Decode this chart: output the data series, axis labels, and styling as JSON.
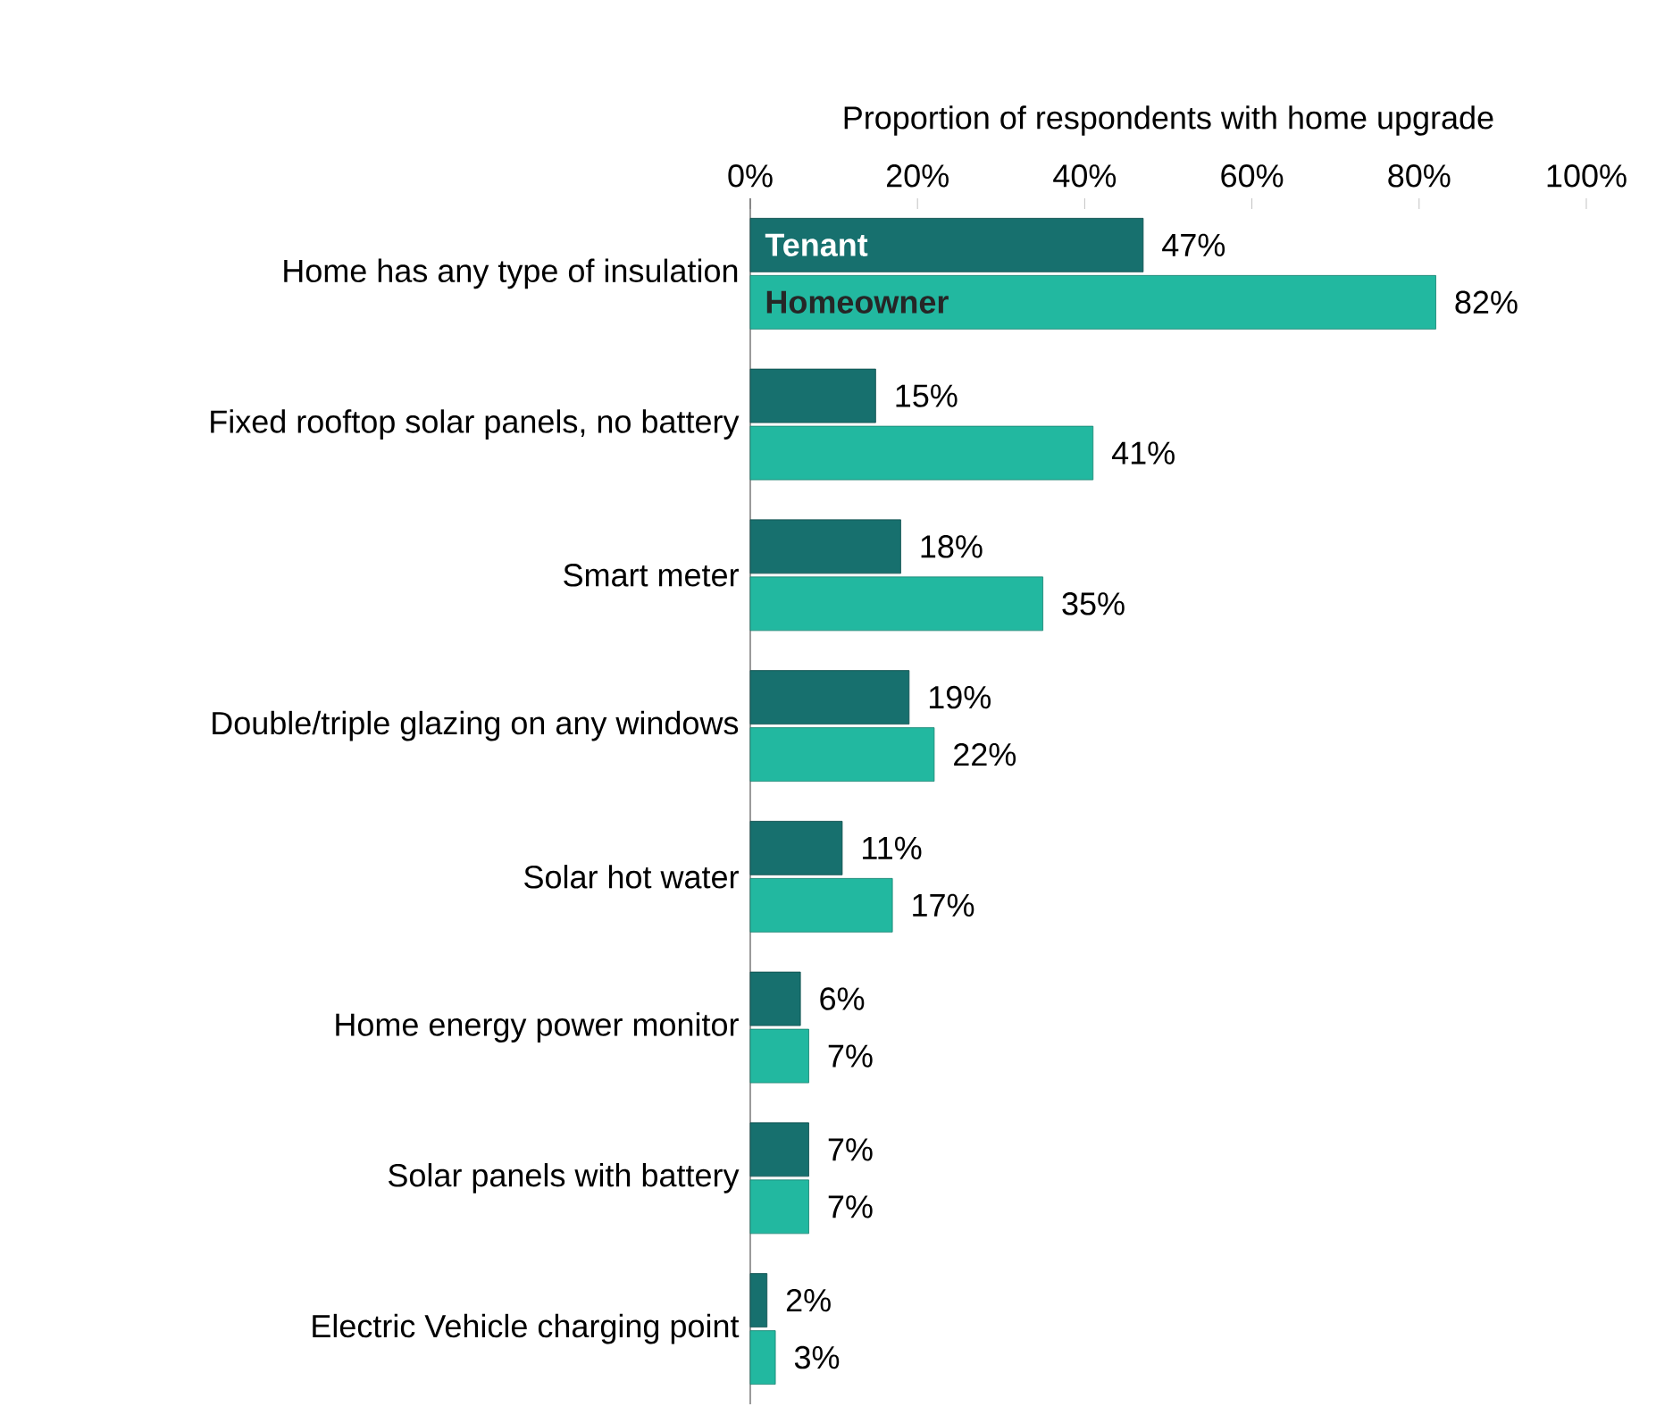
{
  "chart_data": {
    "type": "bar",
    "orientation": "horizontal",
    "xlabel": "Proportion of respondents with home upgrade",
    "categories": [
      "Home has any type of insulation",
      "Fixed rooftop solar panels, no battery",
      "Smart meter",
      "Double/triple glazing on any windows",
      "Solar hot water",
      "Home energy power monitor",
      "Solar panels with battery",
      "Electric Vehicle charging point"
    ],
    "series": [
      {
        "name": "Tenant",
        "color": "#17706e",
        "values": [
          47,
          15,
          18,
          19,
          11,
          6,
          7,
          2
        ],
        "value_labels": [
          "47%",
          "15%",
          "18%",
          "19%",
          "11%",
          "6%",
          "7%",
          "2%"
        ]
      },
      {
        "name": "Homeowner",
        "color": "#22b8a0",
        "values": [
          82,
          41,
          35,
          22,
          17,
          7,
          7,
          3
        ],
        "value_labels": [
          "82%",
          "41%",
          "35%",
          "22%",
          "17%",
          "7%",
          "7%",
          "3%"
        ]
      }
    ],
    "xlim": [
      0,
      100
    ],
    "xticks": [
      {
        "value": 0,
        "label": "0%"
      },
      {
        "value": 20,
        "label": "20%"
      },
      {
        "value": 40,
        "label": "40%"
      },
      {
        "value": 60,
        "label": "60%"
      },
      {
        "value": 80,
        "label": "80%"
      },
      {
        "value": 100,
        "label": "100%"
      }
    ]
  }
}
